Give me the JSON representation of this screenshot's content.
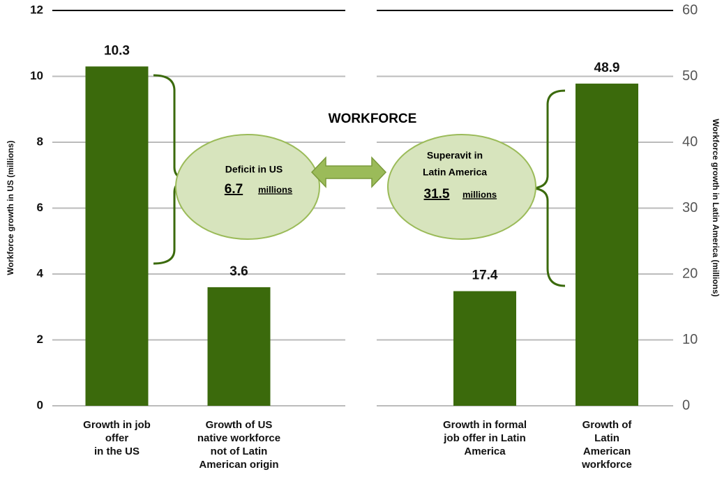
{
  "title": "WORKFORCE",
  "annotations": [
    {
      "label": "Deficit in US",
      "amount": "6.7",
      "unit": "millions"
    },
    {
      "label": [
        "Superavit in",
        "Latin America"
      ],
      "amount": "31.5",
      "unit": "millions"
    }
  ],
  "chart_data": [
    {
      "type": "bar",
      "ylabel": "Workforce growth in US (millions)",
      "categories": [
        [
          "Growth in job",
          "offer",
          "in the US"
        ],
        [
          "Growth of US",
          "native workforce",
          "not of Latin",
          "American origin"
        ]
      ],
      "values": [
        10.3,
        3.6
      ],
      "color": "#3b6a0c",
      "ylim": [
        0,
        12
      ],
      "yticks": [
        0,
        2,
        4,
        6,
        8,
        10,
        12
      ],
      "grid": true
    },
    {
      "type": "bar",
      "y2label": "Workforce growth in Latin America (millions)",
      "categories": [
        [
          "Growth in formal",
          "job offer in Latin",
          "America"
        ],
        [
          "Growth of",
          "Latin",
          "American",
          "workforce"
        ]
      ],
      "values": [
        17.4,
        48.9
      ],
      "color": "#3b6a0c",
      "y2lim": [
        0,
        60
      ],
      "y2ticks": [
        0,
        10,
        20,
        30,
        40,
        50,
        60
      ],
      "grid": true
    }
  ]
}
